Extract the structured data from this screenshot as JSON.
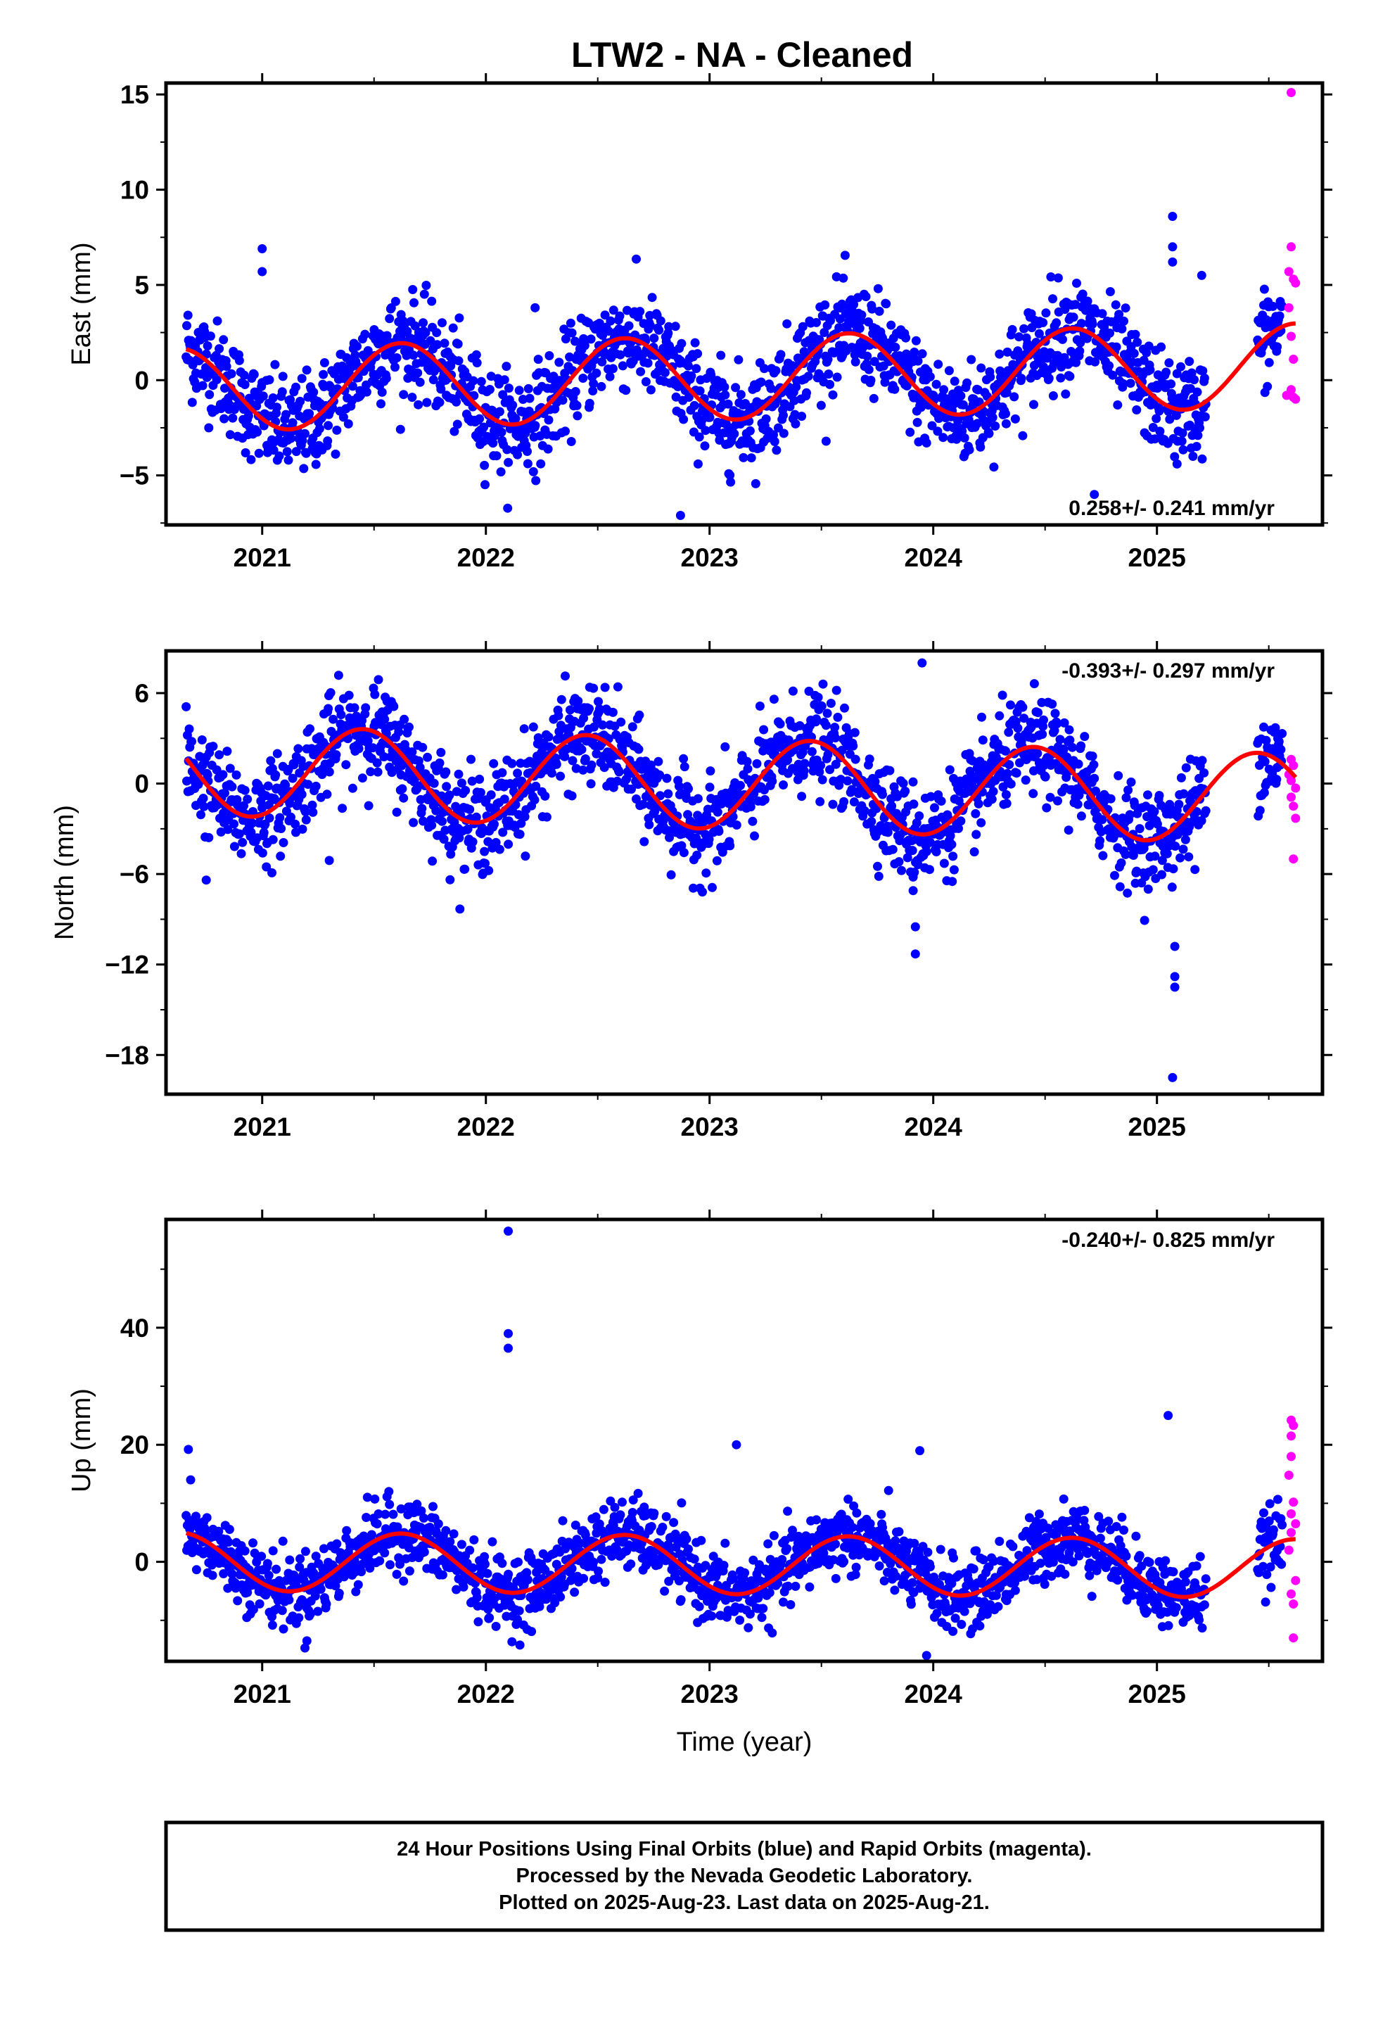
{
  "title": "LTW2  - NA - Cleaned",
  "x_axis_label": "Time (year)",
  "footer": {
    "lines": [
      "24 Hour Positions Using Final Orbits (blue) and Rapid Orbits (magenta).",
      "Processed by the Nevada Geodetic Laboratory.",
      "Plotted on 2025-Aug-23. Last data on 2025-Aug-21."
    ]
  },
  "colors": {
    "final_orbits": "#0000ff",
    "rapid_orbits": "#ff00ff",
    "model_fit": "#ff0000",
    "frame": "#000000"
  },
  "chart_data": [
    {
      "type": "scatter",
      "component": "east",
      "ylabel": "East (mm)",
      "rate_label": "0.258+/- 0.241 mm/yr",
      "rate_position": "bottom-right",
      "xlim": [
        2020.57,
        2025.74
      ],
      "ylim": [
        -7.6,
        15.6
      ],
      "yticks": [
        -5,
        0,
        5,
        10,
        15
      ],
      "yticklabels": [
        "−5",
        "0",
        "5",
        "10",
        "15"
      ],
      "xticks": [
        2021,
        2022,
        2023,
        2024,
        2025
      ],
      "xticklabels": [
        "2021",
        "2022",
        "2023",
        "2024",
        "2025"
      ],
      "data_start": 2020.66,
      "data_end": 2025.22,
      "gap_end": 2025.45,
      "data_last": 2025.56,
      "model": {
        "offset": 0.1,
        "rate": 0.258,
        "annual_amp": 2.2,
        "annual_peak": 0.62,
        "trend_ref": 2023.0
      },
      "scatter_sd": 1.3,
      "outliers": [
        {
          "x": 2021.0,
          "y": 6.9
        },
        {
          "x": 2021.0,
          "y": 5.7
        },
        {
          "x": 2022.87,
          "y": -7.1
        },
        {
          "x": 2022.22,
          "y": 3.8
        },
        {
          "x": 2025.07,
          "y": 8.6
        },
        {
          "x": 2025.07,
          "y": 7.0
        },
        {
          "x": 2025.07,
          "y": 6.2
        },
        {
          "x": 2025.2,
          "y": 5.5
        },
        {
          "x": 2024.72,
          "y": -6.0
        },
        {
          "x": 2025.09,
          "y": -4.4
        }
      ],
      "rapid_points": [
        {
          "x": 2025.6,
          "y": 15.1
        },
        {
          "x": 2025.6,
          "y": 7.0
        },
        {
          "x": 2025.59,
          "y": 5.7
        },
        {
          "x": 2025.61,
          "y": 5.3
        },
        {
          "x": 2025.62,
          "y": 5.1
        },
        {
          "x": 2025.59,
          "y": 3.8
        },
        {
          "x": 2025.6,
          "y": 2.3
        },
        {
          "x": 2025.61,
          "y": 1.1
        },
        {
          "x": 2025.6,
          "y": -0.5
        },
        {
          "x": 2025.61,
          "y": -0.9
        },
        {
          "x": 2025.62,
          "y": -1.0
        },
        {
          "x": 2025.58,
          "y": -0.8
        }
      ]
    },
    {
      "type": "scatter",
      "component": "north",
      "ylabel": "North (mm)",
      "rate_label": "-0.393+/- 0.297 mm/yr",
      "rate_position": "top-right",
      "xlim": [
        2020.57,
        2025.74
      ],
      "ylim": [
        -20.6,
        8.8
      ],
      "yticks": [
        -18,
        -12,
        -6,
        0,
        6
      ],
      "yticklabels": [
        "−18",
        "−12",
        "−6",
        "0",
        "6"
      ],
      "xticks": [
        2021,
        2022,
        2023,
        2024,
        2025
      ],
      "xticklabels": [
        "2021",
        "2022",
        "2023",
        "2024",
        "2025"
      ],
      "data_start": 2020.66,
      "data_end": 2025.22,
      "gap_end": 2025.45,
      "data_last": 2025.56,
      "model": {
        "offset": 0.0,
        "rate": -0.393,
        "annual_amp": 3.0,
        "annual_peak": 0.45,
        "trend_ref": 2023.0
      },
      "scatter_sd": 1.6,
      "outliers": [
        {
          "x": 2023.95,
          "y": 8.0
        },
        {
          "x": 2023.91,
          "y": -6.2
        },
        {
          "x": 2023.91,
          "y": -7.1
        },
        {
          "x": 2023.92,
          "y": -9.5
        },
        {
          "x": 2023.92,
          "y": -11.3
        },
        {
          "x": 2025.08,
          "y": -10.8
        },
        {
          "x": 2025.08,
          "y": -12.8
        },
        {
          "x": 2025.08,
          "y": -13.5
        },
        {
          "x": 2025.07,
          "y": -19.5
        },
        {
          "x": 2020.75,
          "y": -6.4
        },
        {
          "x": 2021.3,
          "y": -5.1
        },
        {
          "x": 2025.17,
          "y": -5.7
        }
      ],
      "rapid_points": [
        {
          "x": 2025.6,
          "y": 1.6
        },
        {
          "x": 2025.61,
          "y": 1.2
        },
        {
          "x": 2025.59,
          "y": 0.6
        },
        {
          "x": 2025.6,
          "y": 0.2
        },
        {
          "x": 2025.62,
          "y": -0.3
        },
        {
          "x": 2025.6,
          "y": -0.9
        },
        {
          "x": 2025.61,
          "y": -1.5
        },
        {
          "x": 2025.62,
          "y": -2.3
        },
        {
          "x": 2025.61,
          "y": -5.0
        }
      ]
    },
    {
      "type": "scatter",
      "component": "up",
      "ylabel": "Up (mm)",
      "rate_label": "-0.240+/- 0.825 mm/yr",
      "rate_position": "top-right",
      "xlim": [
        2020.57,
        2025.74
      ],
      "ylim": [
        -17.0,
        58.5
      ],
      "yticks": [
        0,
        20,
        40
      ],
      "yticklabels": [
        "0",
        "20",
        "40"
      ],
      "xticks": [
        2021,
        2022,
        2023,
        2024,
        2025
      ],
      "xticklabels": [
        "2021",
        "2022",
        "2023",
        "2024",
        "2025"
      ],
      "data_start": 2020.66,
      "data_end": 2025.22,
      "gap_end": 2025.45,
      "data_last": 2025.56,
      "model": {
        "offset": -0.5,
        "rate": -0.24,
        "annual_amp": 5.0,
        "annual_peak": 0.62,
        "trend_ref": 2023.0
      },
      "scatter_sd": 3.0,
      "outliers": [
        {
          "x": 2022.1,
          "y": 56.5
        },
        {
          "x": 2022.1,
          "y": 39.0
        },
        {
          "x": 2022.1,
          "y": 36.5
        },
        {
          "x": 2025.05,
          "y": 25.0
        },
        {
          "x": 2023.12,
          "y": 20.0
        },
        {
          "x": 2023.94,
          "y": 19.0
        },
        {
          "x": 2020.67,
          "y": 19.2
        },
        {
          "x": 2020.68,
          "y": 14.0
        },
        {
          "x": 2023.97,
          "y": -16.0
        },
        {
          "x": 2021.2,
          "y": -13.5
        }
      ],
      "rapid_points": [
        {
          "x": 2025.6,
          "y": 24.2
        },
        {
          "x": 2025.61,
          "y": 23.3
        },
        {
          "x": 2025.6,
          "y": 21.5
        },
        {
          "x": 2025.6,
          "y": 18.0
        },
        {
          "x": 2025.59,
          "y": 14.8
        },
        {
          "x": 2025.61,
          "y": 10.2
        },
        {
          "x": 2025.6,
          "y": 8.2
        },
        {
          "x": 2025.62,
          "y": 6.5
        },
        {
          "x": 2025.6,
          "y": 5.0
        },
        {
          "x": 2025.59,
          "y": 2.0
        },
        {
          "x": 2025.62,
          "y": -3.2
        },
        {
          "x": 2025.6,
          "y": -5.5
        },
        {
          "x": 2025.61,
          "y": -7.2
        },
        {
          "x": 2025.61,
          "y": -13.0
        }
      ]
    }
  ]
}
